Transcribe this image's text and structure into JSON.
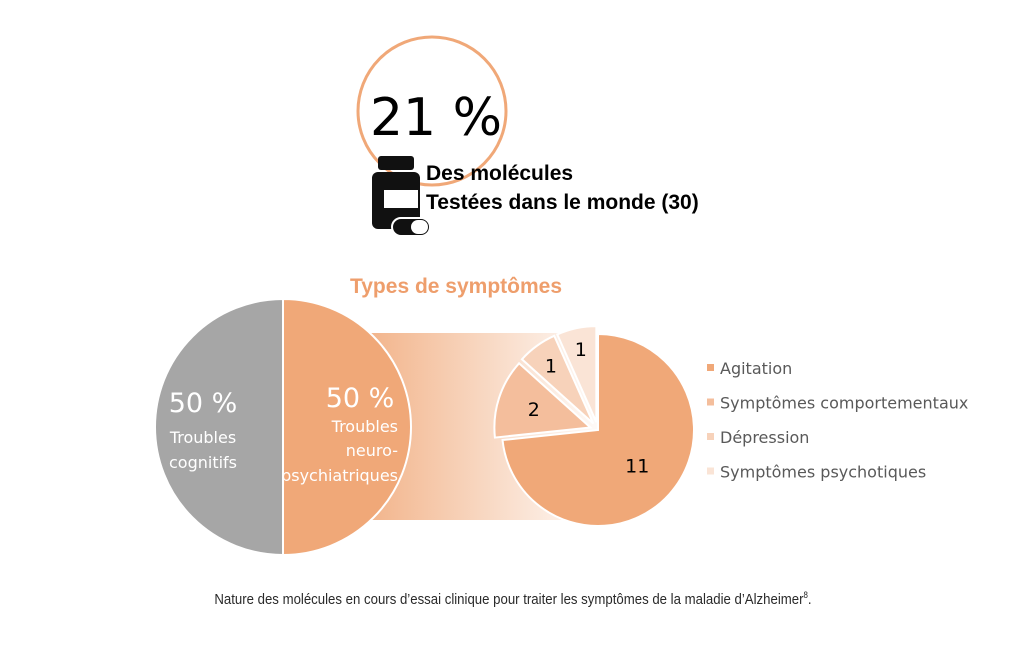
{
  "stat": {
    "value": "21 %",
    "line1": "Des molécules",
    "line2": "Testées dans le monde (30)"
  },
  "colors": {
    "orange": "#F0A878",
    "title_orange": "#EE9E6C",
    "grey": "#A6A6A6",
    "legend_text": "#595959"
  },
  "chart_data": [
    {
      "type": "pie",
      "title": "Types de symptômes",
      "slices": [
        {
          "label_value": "50 %",
          "label_lines": [
            "Troubles",
            "cognitifs"
          ],
          "value": 50,
          "color": "#A6A6A6"
        },
        {
          "label_value": "50 %",
          "label_lines": [
            "Troubles",
            "neuro-",
            "psychiatriques"
          ],
          "value": 50,
          "color": "#F0A878"
        }
      ]
    },
    {
      "type": "pie",
      "categories": [
        "Agitation",
        "Symptômes comportementaux",
        "Dépression",
        "Symptômes psychotiques"
      ],
      "values": [
        11,
        2,
        1,
        1
      ],
      "data_labels": [
        "11",
        "2",
        "1",
        "1"
      ],
      "colors": [
        "#F0A878",
        "#F4BE9C",
        "#F7D2BA",
        "#FAE4D6"
      ],
      "legend_position": "right"
    }
  ],
  "caption": {
    "text": "Nature des molécules en cours d’essai clinique pour traiter les symptômes de la maladie d’Alzheimer",
    "ref": "8",
    "end": "."
  }
}
